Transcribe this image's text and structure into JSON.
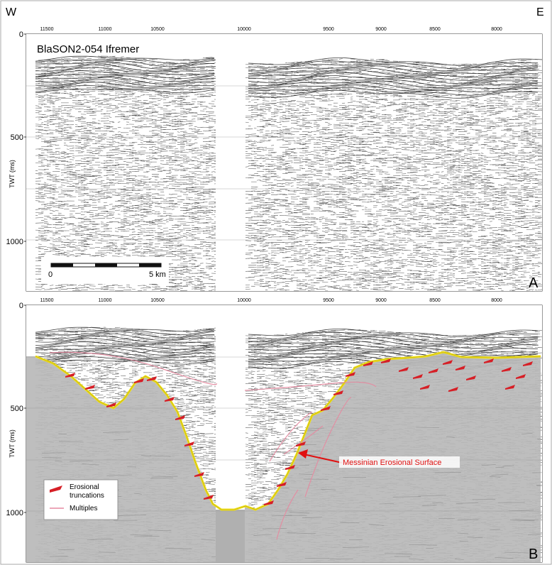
{
  "orientation": {
    "west": "W",
    "east": "E"
  },
  "survey_title": "BlaSON2-054  Ifremer",
  "cdp_ticks": [
    "11500",
    "11000",
    "10500",
    "10000",
    "9500",
    "9000",
    "8500",
    "8000"
  ],
  "twt_axis": {
    "label": "TWT (ms)",
    "ticks": [
      "0",
      "500",
      "1000"
    ]
  },
  "scale_bar": {
    "start": "0",
    "end": "5 km"
  },
  "panels": {
    "a": "A",
    "b": "B"
  },
  "annotation": {
    "mes": "Messinian Erosional Surface"
  },
  "legend": {
    "erosional": "Erosional\ntruncations",
    "multiples": "Multiples"
  },
  "colors": {
    "surface": "#f2e21a",
    "truncation": "#d61f26",
    "multiples": "#e68aa0",
    "annotation_text": "#e01010",
    "fill": "#b8b8b8"
  }
}
